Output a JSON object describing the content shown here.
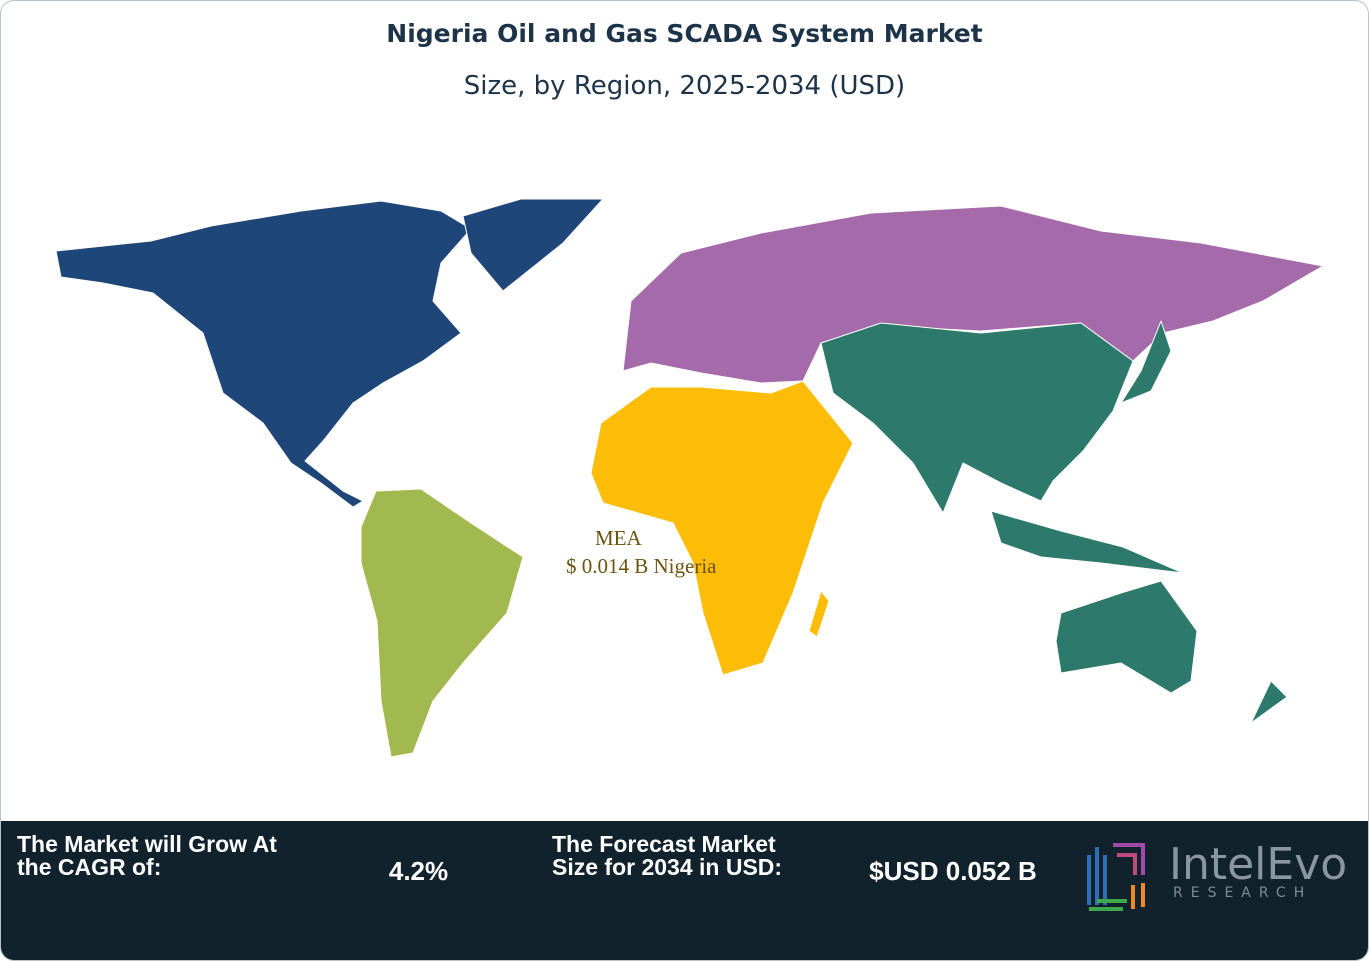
{
  "header": {
    "title": "Nigeria Oil and Gas SCADA System Market",
    "subtitle": "Size, by Region, 2025-2034 (USD)"
  },
  "map": {
    "annotation": {
      "region": "MEA",
      "value": "$ 0.014 B Nigeria"
    }
  },
  "footer": {
    "cagr": {
      "label": "The Market will Grow At the CAGR of:",
      "value": "4.2%"
    },
    "forecast": {
      "label": "The Forecast Market Size for 2034 in USD:",
      "value": "$USD 0.052 B"
    },
    "logo": {
      "name": "IntelEvo",
      "tagline": "RESEARCH"
    }
  }
}
